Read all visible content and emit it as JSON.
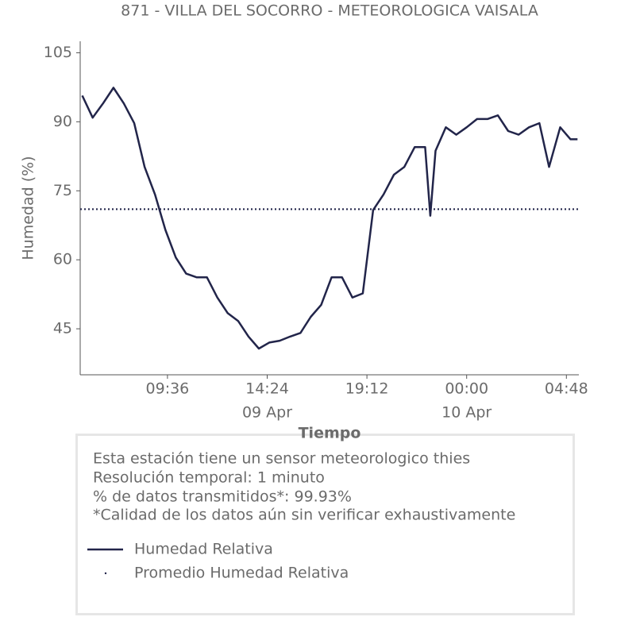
{
  "chart_data": {
    "type": "line",
    "title": "871 - VILLA DEL SOCORRO - METEOROLOGICA VAISALA",
    "x_label": "Tiempo",
    "y_label": "Humedad (%)",
    "x": [
      "09 Apr 05:30",
      "09 Apr 06:00",
      "09 Apr 06:30",
      "09 Apr 07:00",
      "09 Apr 07:30",
      "09 Apr 08:00",
      "09 Apr 08:30",
      "09 Apr 09:00",
      "09 Apr 09:30",
      "09 Apr 10:00",
      "09 Apr 10:30",
      "09 Apr 11:00",
      "09 Apr 11:30",
      "09 Apr 12:00",
      "09 Apr 12:30",
      "09 Apr 13:00",
      "09 Apr 13:30",
      "09 Apr 14:00",
      "09 Apr 14:30",
      "09 Apr 15:00",
      "09 Apr 15:30",
      "09 Apr 16:00",
      "09 Apr 16:30",
      "09 Apr 17:00",
      "09 Apr 17:30",
      "09 Apr 18:00",
      "09 Apr 18:30",
      "09 Apr 19:00",
      "09 Apr 19:30",
      "09 Apr 20:00",
      "09 Apr 20:30",
      "09 Apr 21:00",
      "09 Apr 21:30",
      "09 Apr 22:00",
      "09 Apr 22:15",
      "09 Apr 22:30",
      "09 Apr 23:00",
      "09 Apr 23:30",
      "10 Apr 00:00",
      "10 Apr 00:30",
      "10 Apr 01:00",
      "10 Apr 01:30",
      "10 Apr 02:00",
      "10 Apr 02:30",
      "10 Apr 03:00",
      "10 Apr 03:30",
      "10 Apr 03:58",
      "10 Apr 04:30",
      "10 Apr 05:00",
      "10 Apr 05:20"
    ],
    "series": [
      {
        "name": "Humedad Relativa",
        "color": "#22254a",
        "values": [
          95.7,
          90.9,
          94.0,
          97.4,
          94.0,
          89.7,
          80.2,
          74.2,
          66.5,
          60.5,
          57.0,
          56.2,
          56.2,
          51.8,
          48.4,
          46.7,
          43.3,
          40.7,
          42.0,
          42.4,
          43.3,
          44.1,
          47.6,
          50.2,
          56.2,
          56.2,
          51.8,
          52.7,
          70.8,
          74.2,
          78.5,
          80.2,
          84.5,
          84.5,
          69.6,
          83.7,
          88.8,
          87.2,
          88.8,
          90.6,
          90.6,
          91.4,
          88.0,
          87.2,
          88.8,
          89.7,
          80.2,
          88.8,
          86.2,
          86.2
        ]
      }
    ],
    "reference_lines": [
      {
        "name": "Promedio Humedad Relativa",
        "value": 71,
        "color": "#22254a"
      }
    ],
    "xlim": [
      "09 Apr 05:24",
      "10 Apr 05:24"
    ],
    "xticks": [
      {
        "value": "09 Apr 09:36",
        "label": "09:36"
      },
      {
        "value": "09 Apr 14:24",
        "label": "14:24"
      },
      {
        "value": "09 Apr 19:12",
        "label": "19:12"
      },
      {
        "value": "10 Apr 00:00",
        "label": "00:00"
      },
      {
        "value": "10 Apr 04:48",
        "label": "04:48"
      }
    ],
    "xtick_dates": [
      {
        "value": "09 Apr 14:24",
        "label": "09 Apr"
      },
      {
        "value": "10 Apr 00:00",
        "label": "10 Apr"
      }
    ],
    "ylim": [
      35,
      107.5
    ],
    "yticks": [
      45,
      60,
      75,
      90,
      105
    ],
    "grid": false,
    "annotations": [
      "Esta estación tiene un sensor meteorologico thies",
      "Resolución temporal: 1 minuto",
      "% de datos transmitidos*: 99.93%",
      "*Calidad de los datos aún sin verificar exhaustivamente"
    ]
  }
}
